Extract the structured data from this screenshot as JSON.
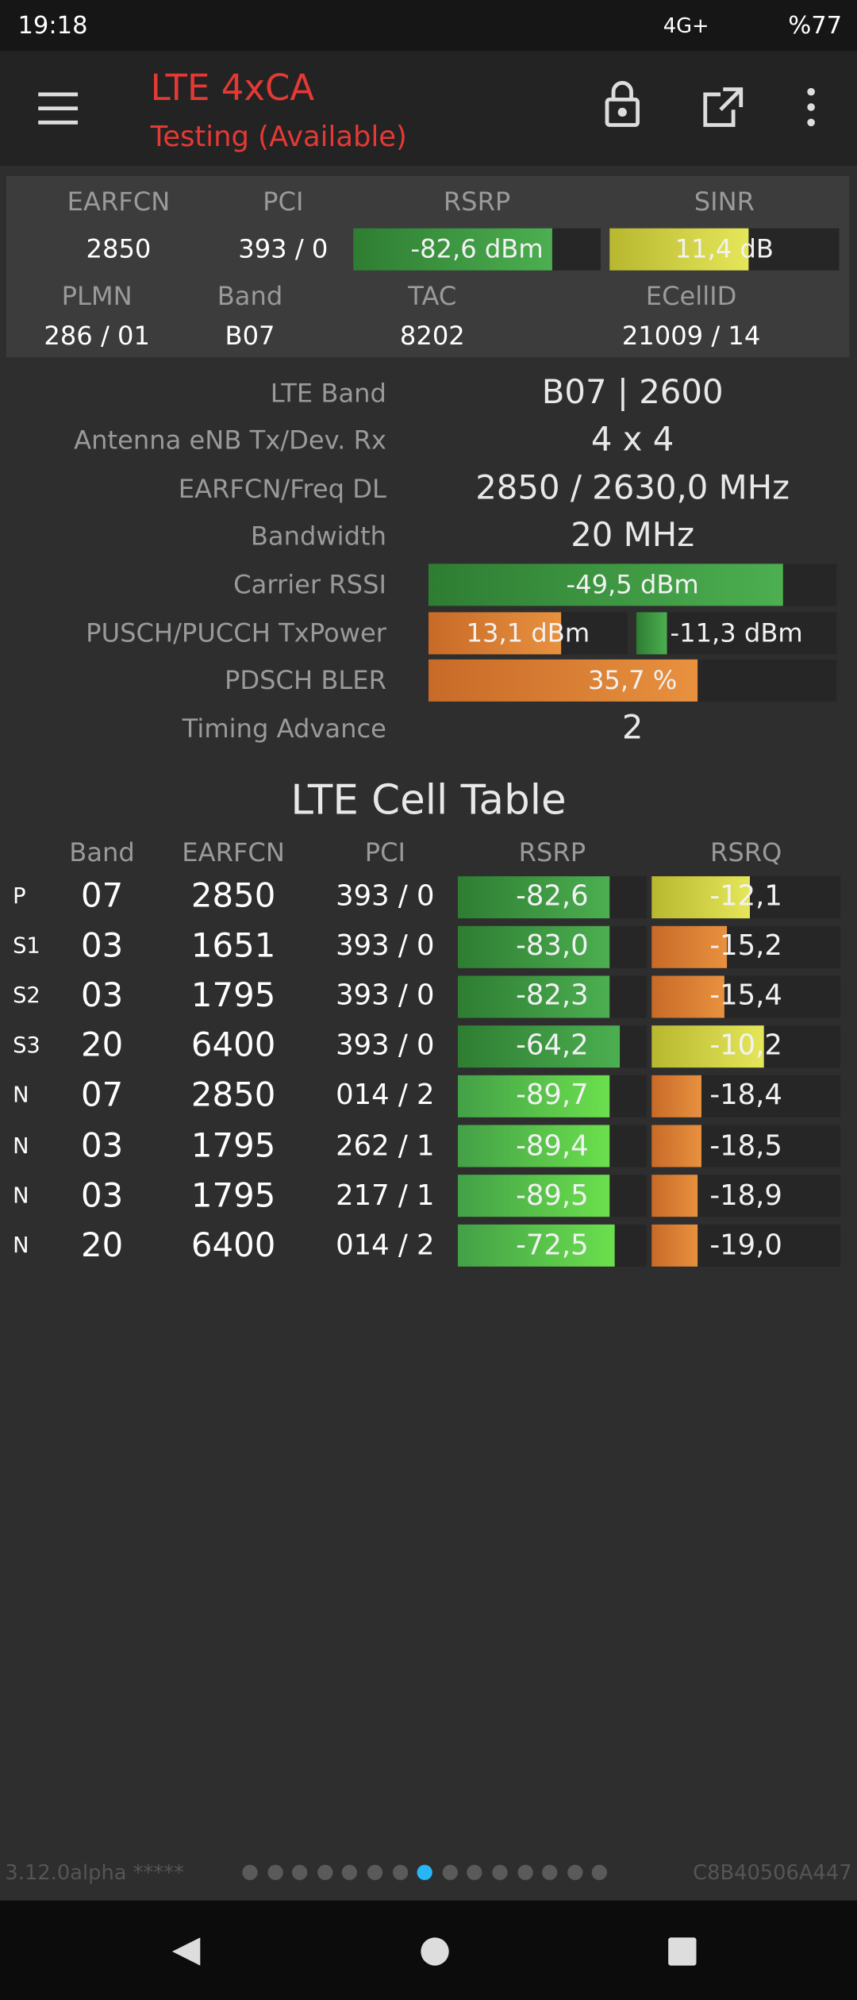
{
  "status_bar": {
    "time": "19:18",
    "network": "4G+",
    "battery": "%77"
  },
  "app_bar": {
    "title": "LTE 4xCA",
    "subtitle": "Testing (Available)"
  },
  "summary": {
    "headers1": [
      "EARFCN",
      "PCI",
      "RSRP",
      "SINR"
    ],
    "values1": [
      "2850",
      "393 / 0",
      "-82,6 dBm",
      "11,4 dB"
    ],
    "headers2": [
      "PLMN",
      "Band",
      "TAC",
      "ECellID"
    ],
    "values2": [
      "286 / 01",
      "B07",
      "8202",
      "21009 / 14"
    ]
  },
  "details": {
    "rows": [
      [
        "LTE Band",
        "B07 | 2600"
      ],
      [
        "Antenna eNB Tx/Dev. Rx",
        "4 x 4"
      ],
      [
        "EARFCN/Freq DL",
        "2850 / 2630,0 MHz"
      ],
      [
        "Bandwidth",
        "20 MHz"
      ],
      [
        "Carrier RSSI",
        "-49,5 dBm"
      ],
      [
        "PUSCH/PUCCH TxPower",
        "13,1 dBm",
        "-11,3 dBm"
      ],
      [
        "PDSCH BLER",
        "35,7 %"
      ],
      [
        "Timing Advance",
        "2"
      ]
    ]
  },
  "cell_table": {
    "title": "LTE Cell Table",
    "columns": [
      "Band",
      "EARFCN",
      "PCI",
      "RSRP",
      "RSRQ"
    ],
    "rows": [
      [
        "P",
        "07",
        "2850",
        "393 / 0",
        "-82,6",
        "-12,1"
      ],
      [
        "S1",
        "03",
        "1651",
        "393 / 0",
        "-83,0",
        "-15,2"
      ],
      [
        "S2",
        "03",
        "1795",
        "393 / 0",
        "-82,3",
        "-15,4"
      ],
      [
        "S3",
        "20",
        "6400",
        "393 / 0",
        "-64,2",
        "-10,2"
      ],
      [
        "N",
        "07",
        "2850",
        "014 / 2",
        "-89,7",
        "-18,4"
      ],
      [
        "N",
        "03",
        "1795",
        "262 / 1",
        "-89,4",
        "-18,5"
      ],
      [
        "N",
        "03",
        "1795",
        "217 / 1",
        "-89,5",
        "-18,9"
      ],
      [
        "N",
        "20",
        "6400",
        "014 / 2",
        "-72,5",
        "-19,0"
      ]
    ]
  },
  "footer": {
    "version": "3.12.0alpha *****",
    "device_id": "C8B40506A447"
  }
}
